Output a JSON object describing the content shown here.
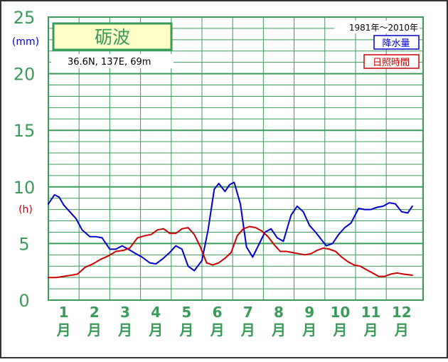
{
  "chart_data": {
    "type": "line",
    "title": "砺波",
    "location_label": "36.6N, 137E, 69m",
    "period_label": "1981年～2010年",
    "ylim": [
      0,
      25
    ],
    "y_ticks": [
      "0",
      "5",
      "10",
      "15",
      "20",
      "25"
    ],
    "y_unit_precip": "(mm)",
    "y_unit_sun": "(h)",
    "month_numbers": [
      "1",
      "2",
      "3",
      "4",
      "5",
      "6",
      "7",
      "8",
      "9",
      "10",
      "11",
      "12"
    ],
    "month_suffix": "月",
    "grid": true,
    "legend_position": "top-right",
    "x_range": [
      0.5,
      12.7
    ],
    "series": [
      {
        "name": "降水量",
        "color": "#0000cc",
        "points": [
          [
            0.5,
            8.5
          ],
          [
            0.7,
            9.3
          ],
          [
            0.85,
            9.1
          ],
          [
            1.0,
            8.4
          ],
          [
            1.2,
            7.8
          ],
          [
            1.4,
            7.2
          ],
          [
            1.6,
            6.2
          ],
          [
            1.85,
            5.6
          ],
          [
            2.05,
            5.6
          ],
          [
            2.25,
            5.5
          ],
          [
            2.5,
            4.5
          ],
          [
            2.7,
            4.5
          ],
          [
            2.9,
            4.8
          ],
          [
            3.1,
            4.5
          ],
          [
            3.35,
            4.1
          ],
          [
            3.55,
            3.8
          ],
          [
            3.8,
            3.3
          ],
          [
            4.0,
            3.2
          ],
          [
            4.2,
            3.6
          ],
          [
            4.45,
            4.2
          ],
          [
            4.65,
            4.8
          ],
          [
            4.85,
            4.5
          ],
          [
            5.05,
            3.0
          ],
          [
            5.25,
            2.6
          ],
          [
            5.5,
            3.5
          ],
          [
            5.7,
            6.2
          ],
          [
            5.9,
            9.8
          ],
          [
            6.05,
            10.3
          ],
          [
            6.25,
            9.6
          ],
          [
            6.4,
            10.2
          ],
          [
            6.55,
            10.4
          ],
          [
            6.75,
            8.5
          ],
          [
            6.95,
            4.7
          ],
          [
            7.15,
            3.8
          ],
          [
            7.35,
            4.9
          ],
          [
            7.55,
            6.0
          ],
          [
            7.75,
            6.3
          ],
          [
            7.95,
            5.5
          ],
          [
            8.15,
            5.2
          ],
          [
            8.4,
            7.5
          ],
          [
            8.6,
            8.3
          ],
          [
            8.8,
            7.8
          ],
          [
            9.0,
            6.6
          ],
          [
            9.2,
            6.0
          ],
          [
            9.4,
            5.3
          ],
          [
            9.55,
            4.8
          ],
          [
            9.75,
            5.0
          ],
          [
            9.95,
            5.8
          ],
          [
            10.15,
            6.4
          ],
          [
            10.35,
            6.8
          ],
          [
            10.6,
            8.1
          ],
          [
            10.8,
            8.0
          ],
          [
            11.0,
            8.0
          ],
          [
            11.2,
            8.2
          ],
          [
            11.4,
            8.3
          ],
          [
            11.6,
            8.6
          ],
          [
            11.8,
            8.5
          ],
          [
            12.0,
            7.8
          ],
          [
            12.2,
            7.7
          ],
          [
            12.35,
            8.3
          ]
        ]
      },
      {
        "name": "日照時間",
        "color": "#cc0000",
        "points": [
          [
            0.5,
            2.0
          ],
          [
            0.75,
            2.0
          ],
          [
            1.0,
            2.1
          ],
          [
            1.25,
            2.2
          ],
          [
            1.45,
            2.3
          ],
          [
            1.7,
            2.9
          ],
          [
            1.95,
            3.2
          ],
          [
            2.2,
            3.6
          ],
          [
            2.45,
            3.9
          ],
          [
            2.7,
            4.3
          ],
          [
            2.95,
            4.4
          ],
          [
            3.15,
            4.6
          ],
          [
            3.4,
            5.5
          ],
          [
            3.65,
            5.7
          ],
          [
            3.85,
            5.8
          ],
          [
            4.05,
            6.2
          ],
          [
            4.25,
            6.3
          ],
          [
            4.45,
            5.9
          ],
          [
            4.65,
            5.9
          ],
          [
            4.85,
            6.3
          ],
          [
            5.05,
            6.4
          ],
          [
            5.25,
            5.8
          ],
          [
            5.45,
            4.7
          ],
          [
            5.65,
            3.3
          ],
          [
            5.85,
            3.1
          ],
          [
            6.05,
            3.3
          ],
          [
            6.25,
            3.7
          ],
          [
            6.45,
            4.2
          ],
          [
            6.65,
            5.7
          ],
          [
            6.85,
            6.3
          ],
          [
            7.05,
            6.5
          ],
          [
            7.25,
            6.4
          ],
          [
            7.45,
            6.1
          ],
          [
            7.65,
            5.6
          ],
          [
            7.85,
            4.9
          ],
          [
            8.05,
            4.3
          ],
          [
            8.25,
            4.3
          ],
          [
            8.45,
            4.2
          ],
          [
            8.65,
            4.1
          ],
          [
            8.85,
            4.0
          ],
          [
            9.05,
            4.1
          ],
          [
            9.25,
            4.4
          ],
          [
            9.45,
            4.6
          ],
          [
            9.65,
            4.5
          ],
          [
            9.85,
            4.3
          ],
          [
            10.05,
            3.8
          ],
          [
            10.25,
            3.4
          ],
          [
            10.45,
            3.1
          ],
          [
            10.65,
            3.0
          ],
          [
            10.85,
            2.7
          ],
          [
            11.05,
            2.4
          ],
          [
            11.25,
            2.1
          ],
          [
            11.45,
            2.1
          ],
          [
            11.65,
            2.3
          ],
          [
            11.85,
            2.4
          ],
          [
            12.05,
            2.3
          ],
          [
            12.35,
            2.2
          ]
        ]
      }
    ]
  }
}
